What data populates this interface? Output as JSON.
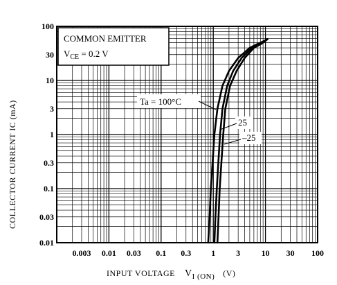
{
  "chart_data": {
    "type": "line",
    "ylabel": "COLLECTOR CURRENT    IC (mA)",
    "xlabel": "INPUT VOLTAGE",
    "xlabel_symbol": "V",
    "xlabel_subscript": "I (ON)",
    "xlabel_unit": "(V)",
    "xscale": "log",
    "yscale": "log",
    "xlim": [
      0.001,
      100
    ],
    "ylim": [
      0.01,
      100
    ],
    "grid": true,
    "x_ticks": [
      {
        "value": 0.003,
        "label": "0.003"
      },
      {
        "value": 0.01,
        "label": "0.01"
      },
      {
        "value": 0.03,
        "label": "0.03"
      },
      {
        "value": 0.1,
        "label": "0.1"
      },
      {
        "value": 0.3,
        "label": "0.3"
      },
      {
        "value": 1,
        "label": "1"
      },
      {
        "value": 3,
        "label": "3"
      },
      {
        "value": 10,
        "label": "10"
      },
      {
        "value": 30,
        "label": "30"
      },
      {
        "value": 100,
        "label": "100"
      }
    ],
    "y_ticks": [
      {
        "value": 100,
        "label": "100"
      },
      {
        "value": 30,
        "label": "30"
      },
      {
        "value": 10,
        "label": "10"
      },
      {
        "value": 3,
        "label": "3"
      },
      {
        "value": 1,
        "label": "1"
      },
      {
        "value": 0.3,
        "label": "0.3"
      },
      {
        "value": 0.1,
        "label": "0.1"
      },
      {
        "value": 0.03,
        "label": "0.03"
      },
      {
        "value": 0.01,
        "label": "0.01"
      }
    ],
    "annotation": {
      "line1": "COMMON EMITTER",
      "line2_symbol": "V",
      "line2_subscript": "CE",
      "line2_value": " = 0.2 V"
    },
    "series": [
      {
        "name": "Ta = 100°C",
        "x": [
          0.8,
          0.85,
          0.9,
          0.97,
          1.05,
          1.2,
          1.5,
          2.0,
          3.0,
          5.0,
          7.0,
          10.0
        ],
        "y": [
          0.01,
          0.03,
          0.1,
          0.3,
          1.0,
          3.0,
          8.0,
          15.0,
          26.0,
          40.0,
          47.0,
          55.0
        ]
      },
      {
        "name": "25",
        "x": [
          1.05,
          1.1,
          1.17,
          1.25,
          1.35,
          1.5,
          1.85,
          2.4,
          3.5,
          5.5,
          8.0,
          10.5
        ],
        "y": [
          0.01,
          0.03,
          0.1,
          0.3,
          1.0,
          3.0,
          8.0,
          15.0,
          26.0,
          40.0,
          48.0,
          57.0
        ]
      },
      {
        "name": "-25",
        "x": [
          1.2,
          1.26,
          1.33,
          1.43,
          1.55,
          1.7,
          2.1,
          2.8,
          4.0,
          6.0,
          8.5,
          11.0
        ],
        "y": [
          0.01,
          0.03,
          0.1,
          0.3,
          1.0,
          3.0,
          8.0,
          15.0,
          26.0,
          40.0,
          48.0,
          58.0
        ]
      }
    ],
    "series_labels": [
      "Ta = 100°C",
      "25",
      "–25"
    ]
  }
}
